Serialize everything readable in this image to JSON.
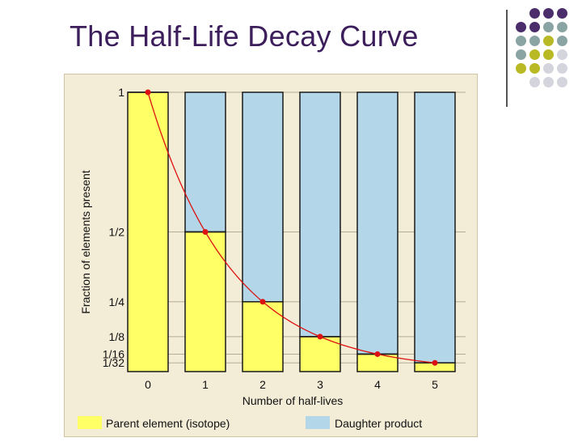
{
  "slide": {
    "title": "The Half-Life Decay Curve"
  },
  "decoration": {
    "dot_colors": [
      "#4b2d6b",
      "#8aa4a3",
      "#b8b924",
      "#d4d4dc"
    ]
  },
  "chart_data": {
    "type": "bar",
    "title": "",
    "xlabel": "Number of half-lives",
    "ylabel": "Fraction of elements present",
    "categories": [
      "0",
      "1",
      "2",
      "3",
      "4",
      "5"
    ],
    "series": [
      {
        "name": "Parent element (isotope)",
        "values": [
          1,
          0.5,
          0.25,
          0.125,
          0.0625,
          0.03125
        ],
        "color": "#ffff66"
      },
      {
        "name": "Daughter product",
        "values": [
          0,
          0.5,
          0.75,
          0.875,
          0.9375,
          0.96875
        ],
        "color": "#b3d7e8"
      }
    ],
    "stacked": true,
    "curve": {
      "color": "#dd1111",
      "x": [
        0,
        1,
        2,
        3,
        4,
        5
      ],
      "y": [
        1,
        0.5,
        0.25,
        0.125,
        0.0625,
        0.03125
      ]
    },
    "ylim": [
      0,
      1
    ],
    "yticks": [
      {
        "value": 1,
        "label": "1"
      },
      {
        "value": 0.5,
        "label": "1/2"
      },
      {
        "value": 0.25,
        "label": "1/4"
      },
      {
        "value": 0.125,
        "label": "1/8"
      },
      {
        "value": 0.0625,
        "label": "1/16"
      },
      {
        "value": 0.03125,
        "label": "1/32"
      }
    ],
    "grid": true,
    "legend": "bottom",
    "background": "#f3ecd6"
  }
}
